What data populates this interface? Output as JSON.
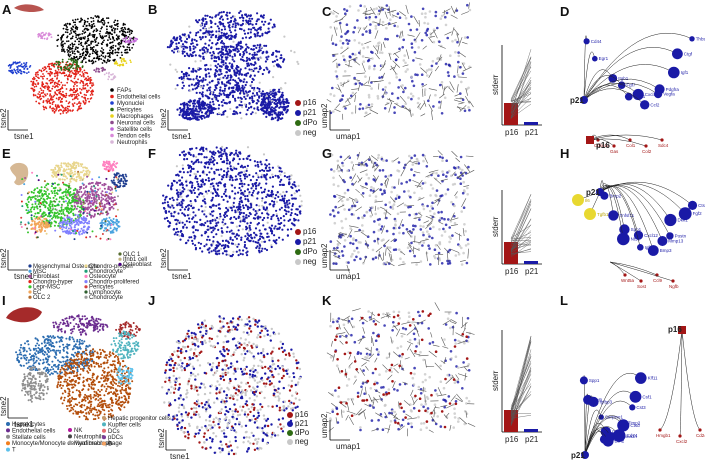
{
  "colors": {
    "blue": "#1a1aa6",
    "red": "#a31616",
    "green": "#2e6b12",
    "grey": "#c8c8c8",
    "yellow": "#e8d830"
  },
  "panels": {
    "A": {
      "label": "A",
      "xlabel": "tsne1",
      "ylabel": "tsne2",
      "legend": [
        {
          "name": "FAPs",
          "color": "#000000"
        },
        {
          "name": "Endothelial cells",
          "color": "#e2231a"
        },
        {
          "name": "Myonuclei",
          "color": "#1f3fd0"
        },
        {
          "name": "Pericytes",
          "color": "#2c6a15"
        },
        {
          "name": "Macrophages",
          "color": "#e8d21b"
        },
        {
          "name": "Neuronal cells",
          "color": "#8d4a8d"
        },
        {
          "name": "Satellite cells",
          "color": "#c066d8"
        },
        {
          "name": "Tendon cells",
          "color": "#d98ad9"
        },
        {
          "name": "Neutrophils",
          "color": "#d8b6d8"
        }
      ]
    },
    "B": {
      "label": "B",
      "xlabel": "tsne1",
      "ylabel": "tsne2",
      "legend": [
        {
          "name": "p16",
          "color": "#a31616"
        },
        {
          "name": "p21",
          "color": "#1a1aa6"
        },
        {
          "name": "dPo",
          "color": "#2e6b12"
        },
        {
          "name": "neg",
          "color": "#c8c8c8"
        }
      ]
    },
    "C": {
      "label": "C",
      "xlabel": "umap1",
      "ylabel": "umap2",
      "bar_ylabel": "stderr",
      "bar_ticks": [
        "p16",
        "p21"
      ]
    },
    "D": {
      "label": "D",
      "hub1": "p21",
      "hub2": "p16",
      "genes_red": [
        "Cdkn1a",
        "Gas",
        "Col1",
        "Col2",
        "Sdc4"
      ],
      "genes_blue": [
        "Cd44",
        "Egr1",
        "Itgb1",
        "Fgf7",
        "Tgfb1",
        "Cxcl12",
        "Ccl2",
        "Vegfa",
        "Pdgfra",
        "Igf1",
        "Ctgf",
        "Thbs1"
      ]
    },
    "E": {
      "label": "E",
      "xlabel": "tsne1",
      "ylabel": "tsne2",
      "legend_col1": [
        {
          "name": "Mesenchymal Osteocyte",
          "color": "#1e3d8f"
        },
        {
          "name": "MSC",
          "color": "#4aa3df"
        },
        {
          "name": "Fibroblast",
          "color": "#a04f9a"
        },
        {
          "name": "Chondro-hyper",
          "color": "#e2231a"
        },
        {
          "name": "Lepr-MSC",
          "color": "#35c42c"
        },
        {
          "name": "EC",
          "color": "#f2a65a"
        },
        {
          "name": "OLC 2",
          "color": "#b36b2d"
        }
      ],
      "legend_col2": [
        {
          "name": "Chondro-progen",
          "color": "#e8d58c"
        },
        {
          "name": "Chondrocyte",
          "color": "#1f9e77"
        },
        {
          "name": "Osteocyte",
          "color": "#ff7fbf"
        },
        {
          "name": "Chondro-prolifered",
          "color": "#7f7fff"
        },
        {
          "name": "Pericytes",
          "color": "#d43f3f"
        },
        {
          "name": "Lymphocyte",
          "color": "#2f5f2f"
        },
        {
          "name": "Chondrocyte",
          "color": "#9a9a9a"
        }
      ],
      "legend_col3": [
        {
          "name": "OLC 1",
          "color": "#556b2f"
        },
        {
          "name": "Ifnb1 cell",
          "color": "#c2b280"
        },
        {
          "name": "Osteoblast",
          "color": "#4b0082"
        }
      ]
    },
    "F": {
      "label": "F",
      "xlabel": "tsne1",
      "ylabel": "tsne2",
      "legend": [
        {
          "name": "p16",
          "color": "#a31616"
        },
        {
          "name": "p21",
          "color": "#1a1aa6"
        },
        {
          "name": "dPo",
          "color": "#2e6b12"
        },
        {
          "name": "neg",
          "color": "#c8c8c8"
        }
      ]
    },
    "G": {
      "label": "G",
      "xlabel": "umap1",
      "ylabel": "umap2",
      "bar_ylabel": "stderr",
      "bar_ticks": [
        "p16",
        "p21"
      ]
    },
    "H": {
      "label": "H",
      "hub1": "p21",
      "genes_red": [
        "Wnt5a",
        "Sost",
        "Ccl9",
        "Ngfb"
      ],
      "genes_blue": [
        "Bmp2",
        "Tnfsf11",
        "Spp1",
        "Nt5e",
        "Cxcl12",
        "Igf1",
        "Bmp3",
        "Mmp13",
        "Postn",
        "Dkk1",
        "Fgf2",
        "Ctsk"
      ],
      "genes_yellow": [
        "Il6",
        "Tgfb1"
      ]
    },
    "I": {
      "label": "I",
      "xlabel": "tsne1",
      "ylabel": "tsne2",
      "legend_col1": [
        {
          "name": "Hepatocytes",
          "color": "#2b6cb0"
        },
        {
          "name": "Endothelial cells",
          "color": "#6b2c8f"
        },
        {
          "name": "Stellate cells",
          "color": "#8f8f8f"
        },
        {
          "name": "Monocyte/Monocyte derived macrophage",
          "color": "#f27e1d"
        },
        {
          "name": "T",
          "color": "#5bc0eb"
        }
      ],
      "legend_col2": [
        {
          "name": "NK",
          "color": "#b5179e"
        },
        {
          "name": "Neutrophils",
          "color": "#444444"
        },
        {
          "name": "Myofibroblasts",
          "color": "#a3a3a3"
        }
      ],
      "legend_col3": [
        {
          "name": "Hepatic progenitor cells",
          "color": "#c49a6c"
        },
        {
          "name": "Kupffer cells",
          "color": "#4fb3bf"
        },
        {
          "name": "DCs",
          "color": "#e56b6f"
        },
        {
          "name": "pDCs",
          "color": "#7d3c98"
        },
        {
          "name": "B",
          "color": "#f4a261"
        }
      ]
    },
    "J": {
      "label": "J",
      "xlabel": "tsne1",
      "ylabel": "tsne2",
      "legend": [
        {
          "name": "p16",
          "color": "#a31616"
        },
        {
          "name": "p21",
          "color": "#1a1aa6"
        },
        {
          "name": "dPo",
          "color": "#2e6b12"
        },
        {
          "name": "neg",
          "color": "#c8c8c8"
        }
      ]
    },
    "K": {
      "label": "K",
      "xlabel": "umap1",
      "ylabel": "umap2",
      "bar_ylabel": "stderr",
      "bar_ticks": [
        "p16",
        "p21"
      ]
    },
    "L": {
      "label": "L",
      "hub1": "p21",
      "hub2": "p16",
      "genes_blue": [
        "Spp1",
        "Cd9",
        "Igfbp3",
        "Serpine1",
        "C3",
        "Apoe",
        "Lcn2",
        "Serpina3n",
        "Cd74",
        "Ctsd",
        "Timp2",
        "Cst3",
        "Csf1",
        "Klf11"
      ],
      "genes_red": [
        "Hmgb1",
        "Cxcl2",
        "Cd24"
      ]
    }
  }
}
